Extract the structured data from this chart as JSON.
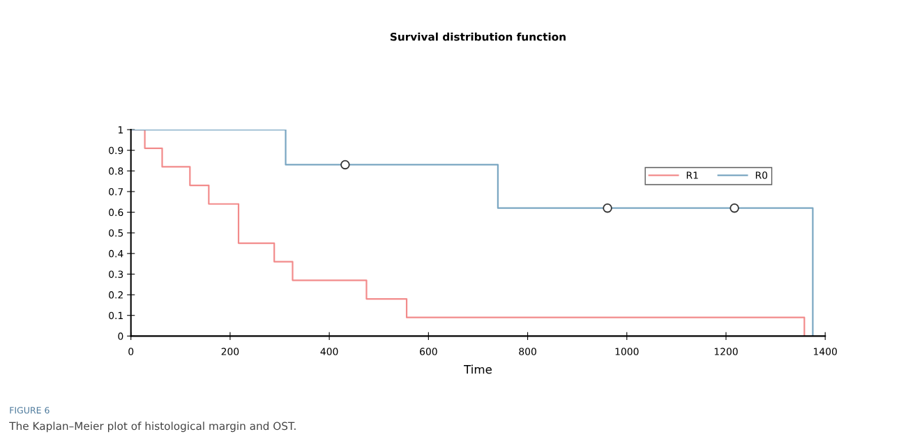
{
  "chart_data": {
    "type": "step",
    "title": "Survival distribution function",
    "xlabel": "Time",
    "xlim": [
      0,
      1400
    ],
    "xticks": [
      0,
      200,
      400,
      600,
      800,
      1000,
      1200,
      1400
    ],
    "ylim": [
      0,
      1
    ],
    "yticks": [
      0,
      0.1,
      0.2,
      0.3,
      0.4,
      0.5,
      0.6,
      0.7,
      0.8,
      0.9,
      1
    ],
    "grid": false,
    "legend": "top right",
    "series": [
      {
        "name": "R1",
        "color": "#f28b8b",
        "x": [
          0,
          28,
          63,
          119,
          157,
          217,
          289,
          326,
          475,
          556,
          1358
        ],
        "values": [
          1,
          0.91,
          0.82,
          0.73,
          0.64,
          0.45,
          0.36,
          0.27,
          0.18,
          0.09,
          0
        ]
      },
      {
        "name": "R0",
        "color": "#7aa6c2",
        "x": [
          0,
          312,
          740,
          1375
        ],
        "values": [
          1,
          0.83,
          0.62,
          0
        ]
      },
      {
        "type": "scatter",
        "marker": "circle",
        "color": "#333333",
        "x": [
          432,
          961,
          1217
        ],
        "values": [
          0.83,
          0.62,
          0.62
        ]
      }
    ],
    "annotations": [
      "FIGURE 6",
      "The Kaplan–Meier plot of histological margin and OST."
    ]
  }
}
